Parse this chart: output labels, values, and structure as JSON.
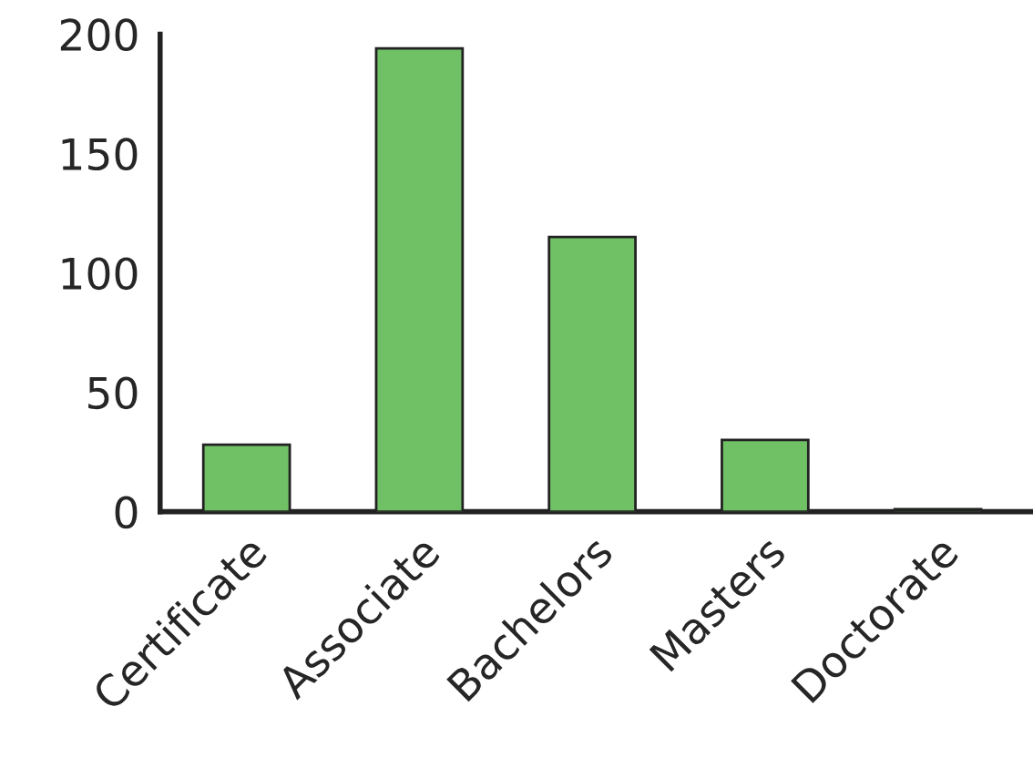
{
  "chart_data": {
    "type": "bar",
    "categories": [
      "Certificate",
      "Associate",
      "Bachelors",
      "Masters",
      "Doctorate"
    ],
    "values": [
      28,
      194,
      115,
      30,
      1
    ],
    "color": "#70c066",
    "ylim": [
      0,
      200
    ],
    "yticks": [
      0,
      50,
      100,
      150,
      200
    ],
    "grid": false,
    "legend": false
  }
}
